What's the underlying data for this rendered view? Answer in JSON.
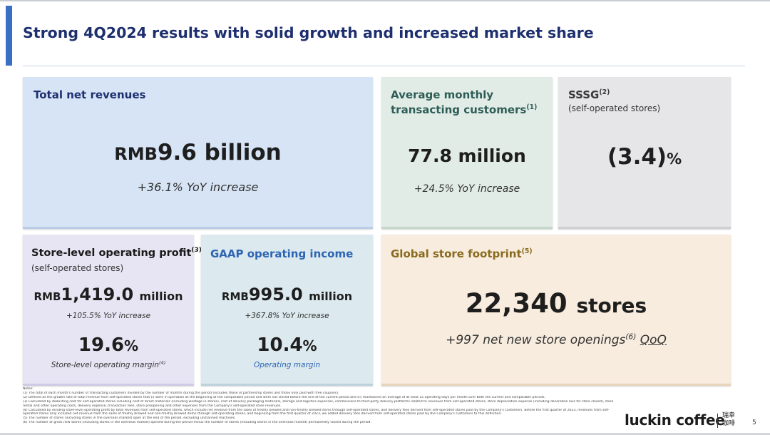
{
  "title": "Strong 4Q2024 results with solid growth and increased market share",
  "cards": {
    "revenue": {
      "label": "Total net revenues",
      "value_prefix": "RMB",
      "value": "9.6 billion",
      "change": "+36.1% YoY increase"
    },
    "customers": {
      "label_line1": "Average monthly",
      "label_line2": "transacting customers",
      "note_ref": "(1)",
      "value": "77.8 million",
      "change": "+24.5% YoY increase"
    },
    "sssg": {
      "label": "SSSG",
      "note_ref": "(2)",
      "sublabel": "(self-operated stores)",
      "value": "(3.4)",
      "value_suffix": "%"
    },
    "store_profit": {
      "label": "Store-level operating profit",
      "note_ref": "(3)",
      "sublabel": "(self-operated stores)",
      "value_prefix": "RMB",
      "value": "1,419.0",
      "value_unit": "million",
      "change": "+105.5% YoY increase",
      "margin_value": "19.6",
      "margin_suffix": "%",
      "margin_label": "Store-level operating margin",
      "margin_note_ref": "(4)"
    },
    "gaap": {
      "label": "GAAP operating income",
      "value_prefix": "RMB",
      "value": "995.0",
      "value_unit": "million",
      "change": "+367.8% YoY increase",
      "margin_value": "10.4",
      "margin_suffix": "%",
      "margin_label": "Operating margin"
    },
    "footprint": {
      "label": "Global store footprint",
      "note_ref": "(5)",
      "value": "22,340",
      "value_unit": "stores",
      "change_prefix": "+997 net new store openings",
      "change_note_ref": "(6)",
      "change_suffix": "QoQ"
    }
  },
  "notes": {
    "heading": "Notes:",
    "lines": [
      "(1)    The total of each month's number of transacting customers divided by the number of months during the period (includes those of partnership stores and those only paid with free coupons).",
      "(2)    Defined as the growth rate of total revenue from self-operated stores that (i) were in operation at the beginning of the comparable period and were not closed before the end of the current period and (ii) maintained an average of at least 15 operating days per month over both the current and comparable periods.",
      "(3)    Calculated by deducting cost for self-operated stores including cost of direct materials (including wastage in stores), cost of delivery packaging materials, storage and logistics expenses, commissions to third-party delivery platforms related to revenues from self-operated stores, store depreciation expense (including decoration loss for store closed), store",
      "        rental and other operating costs, delivery expense, transaction fees, store preopening and other expenses from the Company's self-operated store revenues.",
      "(4)    Calculated by dividing store-level operating profit by total revenues from self-operated stores, which include net revenue from the sales of freshly brewed and non-freshly brewed items through self-operated stores, and delivery fees derived from self-operated stores paid by the Company's customers. Before the first quarter of 2023, revenues from self-",
      "        operated stores only included net revenue from the sales of freshly brewed and non-freshly brewed items through self-operating stores, and beginning from the first quarter of 2023, we added delivery fees derived from self-operated stores paid by the Company's customers to this definition.",
      "(5)    The number of stores (including stores in the overseas market) open at the end of the period, excluding unmanned machines.",
      "(6)    The number of gross new stores (including stores in the overseas market) opened during the period minus the number of stores (including stores in the overseas market) permanently closed during the period."
    ]
  },
  "brand": {
    "logo_text": "luckin coffee",
    "logo_cn_line1": "瑞幸",
    "logo_cn_line2": "咖啡"
  },
  "page_number": "5",
  "colors": {
    "title": "#1d2f6f",
    "accent_bar": "#3a6fc4",
    "card_revenue": "#d6e4f5",
    "card_customers": "#e2ece6",
    "card_sssg": "#e6e6e8",
    "card_store_profit": "#e7e5f3",
    "card_gaap": "#dce9ee",
    "card_footprint": "#f7ecde",
    "label_gold": "#8a6a1c",
    "label_blue": "#2d64b4"
  }
}
